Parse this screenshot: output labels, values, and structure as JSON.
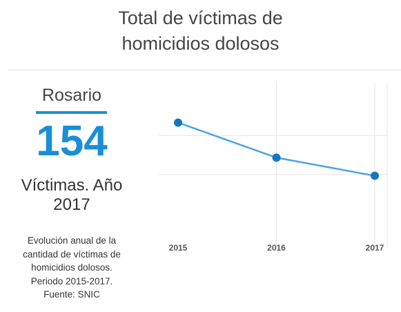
{
  "title": {
    "line1": "Total de víctimas de",
    "line2": "homicidios dolosos"
  },
  "city": "Rosario",
  "total": "154",
  "victims_label": {
    "line1": "Víctimas. Año",
    "line2": "2017"
  },
  "description": {
    "line1": "Evolución anual de la",
    "line2": "cantidad de víctimas de",
    "line3": "homicidios dolosos.",
    "line4": "Periodo 2015-2017.",
    "line5": "Fuente: SNIC"
  },
  "colors": {
    "accent": "#1a8fd6",
    "line": "#4ba3e0",
    "point": "#1577c4",
    "grid": "#e6e6e6"
  },
  "chart_data": {
    "type": "line",
    "categories": [
      "2015",
      "2016",
      "2017"
    ],
    "series": [
      {
        "values": [
          195,
          168,
          154
        ]
      }
    ],
    "ylim": [
      115,
      215
    ],
    "grid": true
  }
}
